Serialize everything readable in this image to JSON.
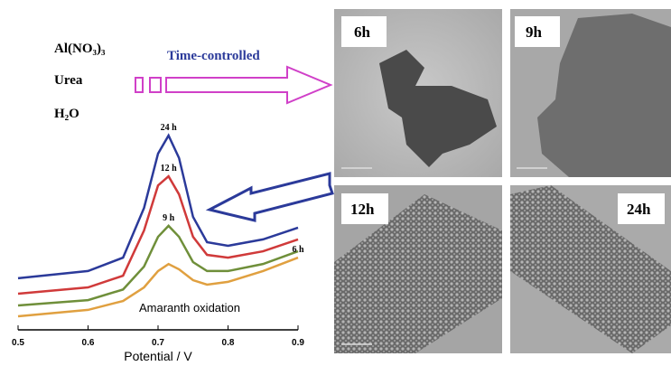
{
  "chart_data": {
    "type": "line",
    "x": [
      0.5,
      0.6,
      0.65,
      0.68,
      0.7,
      0.715,
      0.73,
      0.75,
      0.77,
      0.8,
      0.85,
      0.9
    ],
    "series": [
      {
        "name": "24 h",
        "color": "#2b3a9a",
        "values": [
          24.3,
          27.7,
          34,
          57.4,
          83,
          91.5,
          80.9,
          53.2,
          41.3,
          39.6,
          42.6,
          48.1
        ]
      },
      {
        "name": "12 h",
        "color": "#d03a3a",
        "values": [
          17,
          20,
          25.5,
          46.8,
          68,
          72.3,
          63.8,
          43.8,
          35.3,
          34,
          37,
          42.6
        ]
      },
      {
        "name": "9 h",
        "color": "#6f8f3a",
        "values": [
          11.5,
          14,
          19,
          29.8,
          43.8,
          49,
          43.8,
          31.9,
          27.7,
          27.7,
          31,
          37
        ]
      },
      {
        "name": "6 h",
        "color": "#e0a040",
        "values": [
          6.4,
          9.4,
          13.6,
          20,
          27.7,
          31,
          28.5,
          23.4,
          21.3,
          22.6,
          27.7,
          34
        ]
      }
    ],
    "xlim": [
      0.5,
      0.9
    ],
    "xticks": [
      0.5,
      0.6,
      0.7,
      0.8,
      0.9
    ],
    "ylim": [
      0,
      100
    ],
    "xlabel": "Potential / V",
    "annotation": "Amaranth oxidation"
  },
  "reagents": [
    "Al(NO₃)₃",
    "Urea",
    "H₂O"
  ],
  "process": "Time-controlled",
  "panels": [
    "6h",
    "9h",
    "12h",
    "24h"
  ]
}
